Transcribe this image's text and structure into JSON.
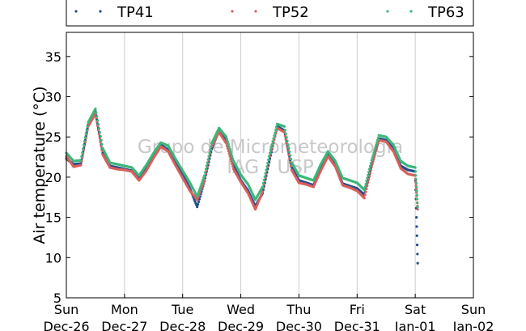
{
  "chart_data": {
    "type": "scatter",
    "ylabel": "Air temperature (°C)",
    "ylim": [
      5,
      38
    ],
    "yticks": [
      5,
      10,
      15,
      20,
      25,
      30,
      35
    ],
    "xlim": [
      "2010-12-26",
      "2011-01-02"
    ],
    "xticks": [
      {
        "day": "Sun",
        "date": "Dec-26"
      },
      {
        "day": "Mon",
        "date": "Dec-27"
      },
      {
        "day": "Tue",
        "date": "Dec-28"
      },
      {
        "day": "Wed",
        "date": "Dec-29"
      },
      {
        "day": "Thu",
        "date": "Dec-30"
      },
      {
        "day": "Fri",
        "date": "Dec-31"
      },
      {
        "day": "Sat",
        "date": "Jan-01"
      },
      {
        "day": "Sun",
        "date": "Jan-02"
      }
    ],
    "grid": "vertical",
    "legend_position": "top",
    "watermark": [
      "Grupo de Micrometeorologia",
      "IAG / USP"
    ],
    "x_hours_from_start": [
      0,
      3,
      6,
      9,
      12,
      15,
      18,
      21,
      24,
      27,
      30,
      33,
      36,
      39,
      42,
      45,
      48,
      51,
      54,
      57,
      60,
      63,
      66,
      69,
      72,
      75,
      78,
      81,
      84,
      87,
      90,
      93,
      96,
      99,
      102,
      105,
      108,
      111,
      114,
      117,
      120,
      123,
      126,
      129,
      132,
      135,
      138,
      141,
      144,
      145
    ],
    "series": [
      {
        "name": "TP41",
        "color": "#1f4e8c",
        "values": [
          22.3,
          21.6,
          21.7,
          26.5,
          28.2,
          23.0,
          21.4,
          21.2,
          21.0,
          20.8,
          19.8,
          21.0,
          22.5,
          24.0,
          23.4,
          21.8,
          20.3,
          18.6,
          16.3,
          19.5,
          23.5,
          25.8,
          24.5,
          21.4,
          19.6,
          18.3,
          16.4,
          18.0,
          22.3,
          26.3,
          25.8,
          21.2,
          19.6,
          19.3,
          19.0,
          21.0,
          22.8,
          21.5,
          19.2,
          18.9,
          18.6,
          17.8,
          21.5,
          24.8,
          24.6,
          23.5,
          21.4,
          20.9,
          20.7,
          9.3
        ]
      },
      {
        "name": "TP52",
        "color": "#d95f5f",
        "values": [
          22.6,
          21.3,
          21.5,
          26.3,
          27.9,
          22.8,
          21.2,
          21.0,
          20.9,
          20.7,
          19.6,
          20.8,
          22.4,
          23.8,
          23.2,
          21.5,
          19.9,
          18.3,
          17.2,
          19.6,
          23.8,
          25.6,
          24.2,
          21.0,
          19.4,
          18.0,
          16.0,
          18.2,
          22.6,
          26.1,
          25.6,
          20.9,
          19.3,
          19.1,
          18.8,
          20.8,
          22.6,
          21.3,
          19.0,
          18.7,
          18.3,
          17.4,
          21.3,
          24.6,
          24.4,
          23.2,
          21.1,
          20.4,
          20.2,
          16.0
        ]
      },
      {
        "name": "TP63",
        "color": "#3cb77a",
        "values": [
          23.0,
          22.0,
          22.1,
          26.8,
          28.5,
          23.6,
          21.8,
          21.6,
          21.4,
          21.2,
          20.2,
          21.5,
          23.0,
          24.3,
          23.9,
          22.3,
          20.8,
          19.3,
          17.6,
          20.2,
          24.2,
          26.1,
          25.0,
          22.0,
          20.3,
          19.1,
          17.2,
          18.8,
          23.0,
          26.6,
          26.3,
          21.8,
          20.2,
          19.9,
          19.6,
          21.6,
          23.2,
          22.0,
          19.9,
          19.6,
          19.3,
          18.4,
          22.1,
          25.2,
          25.0,
          24.0,
          22.0,
          21.4,
          21.2,
          16.3
        ]
      }
    ]
  }
}
